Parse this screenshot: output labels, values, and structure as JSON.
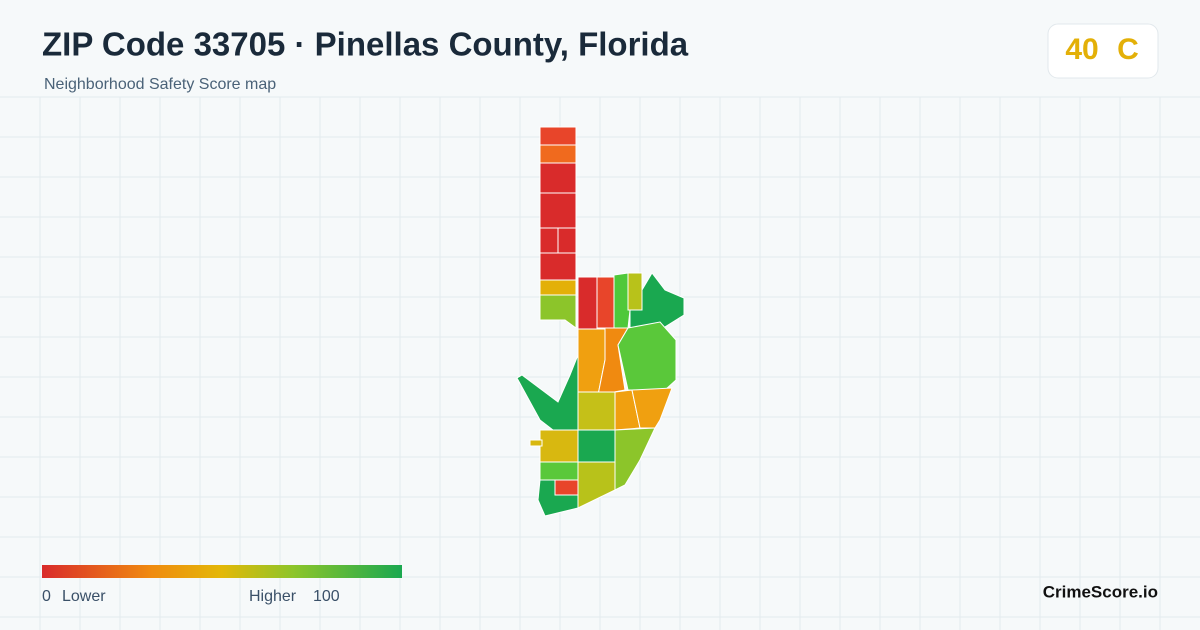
{
  "header": {
    "title": "ZIP Code 33705 · Pinellas County, Florida",
    "subtitle": "Neighborhood Safety Score map"
  },
  "score": {
    "value": 40,
    "grade": "C"
  },
  "legend": {
    "min": 0,
    "min_label": "Lower",
    "max_label": "Higher",
    "max": 100
  },
  "brand": "CrimeScore.io"
}
